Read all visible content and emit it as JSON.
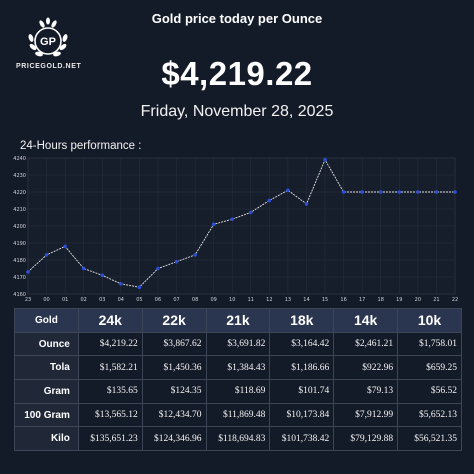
{
  "brand": {
    "monogram": "GP",
    "name": "PRICEGOLD.NET"
  },
  "header": {
    "title": "Gold price today per Ounce",
    "price": "$4,219.22",
    "date": "Friday, November 28, 2025",
    "performance_label": "24-Hours performance :"
  },
  "colors": {
    "background": "#141b28",
    "table_header": "#2a3550",
    "line": "#e6e6e6",
    "marker": "#2b4fd8",
    "grid": "#2a3242"
  },
  "chart_data": {
    "type": "line",
    "x": [
      "23",
      "00",
      "01",
      "02",
      "03",
      "04",
      "05",
      "06",
      "07",
      "08",
      "09",
      "10",
      "11",
      "12",
      "13",
      "14",
      "15",
      "16",
      "17",
      "18",
      "19",
      "20",
      "21",
      "22"
    ],
    "values": [
      4173,
      4183,
      4188,
      4175,
      4171,
      4166,
      4164,
      4175,
      4179,
      4183,
      4201,
      4204,
      4208,
      4215,
      4221,
      4213,
      4239,
      4220,
      4220,
      4220,
      4220,
      4220,
      4220,
      4220
    ],
    "yticks": [
      "4160",
      "4170",
      "4180",
      "4190",
      "4200",
      "4210",
      "4220",
      "4230",
      "4240"
    ],
    "ylim": [
      4160,
      4240
    ],
    "grid": true
  },
  "table": {
    "corner": "Gold",
    "columns": [
      "24k",
      "22k",
      "21k",
      "18k",
      "14k",
      "10k"
    ],
    "rows": [
      {
        "label": "Ounce",
        "values": [
          "$4,219.22",
          "$3,867.62",
          "$3,691.82",
          "$3,164.42",
          "$2,461.21",
          "$1,758.01"
        ]
      },
      {
        "label": "Tola",
        "values": [
          "$1,582.21",
          "$1,450.36",
          "$1,384.43",
          "$1,186.66",
          "$922.96",
          "$659.25"
        ]
      },
      {
        "label": "Gram",
        "values": [
          "$135.65",
          "$124.35",
          "$118.69",
          "$101.74",
          "$79.13",
          "$56.52"
        ]
      },
      {
        "label": "100 Gram",
        "values": [
          "$13,565.12",
          "$12,434.70",
          "$11,869.48",
          "$10,173.84",
          "$7,912.99",
          "$5,652.13"
        ]
      },
      {
        "label": "Kilo",
        "values": [
          "$135,651.23",
          "$124,346.96",
          "$118,694.83",
          "$101,738.42",
          "$79,129.88",
          "$56,521.35"
        ]
      }
    ]
  }
}
